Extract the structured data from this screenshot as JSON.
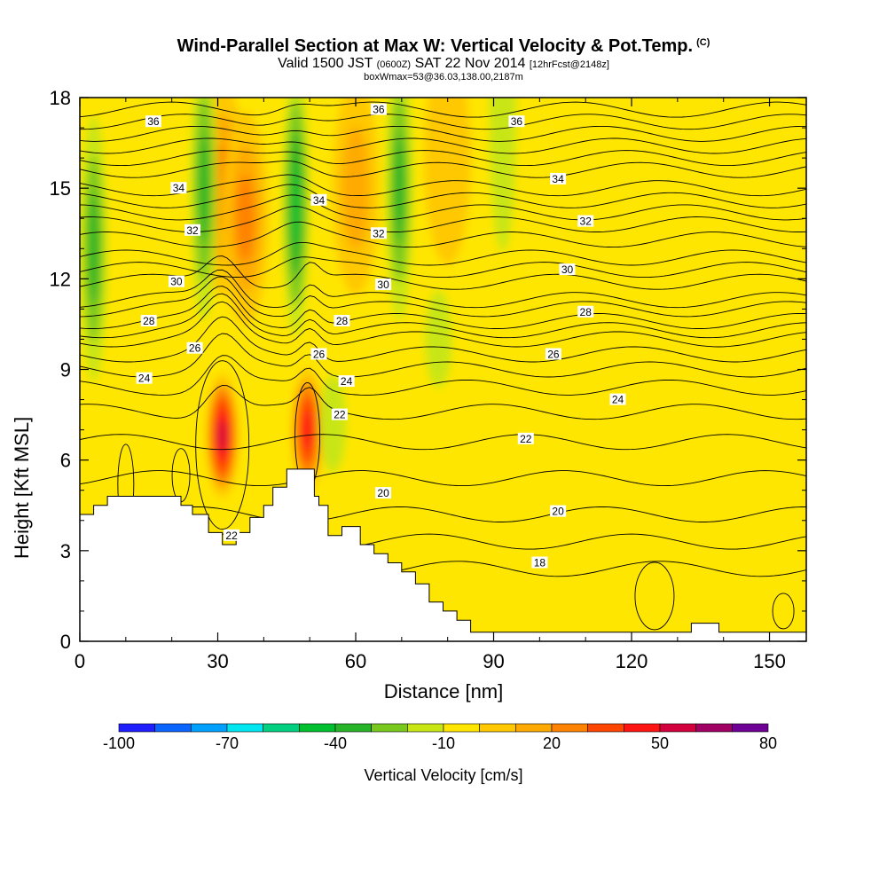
{
  "header": {
    "title": "Wind-Parallel Section at Max W: Vertical Velocity & Pot.Temp.",
    "title_suffix": "(C)",
    "valid_prefix": "Valid 1500 JST",
    "valid_utc": "(0600Z)",
    "valid_date": "SAT 22 Nov 2014",
    "forecast_info": "[12hrFcst@2148z]",
    "box_info": "boxWmax=53@36.03,138.00,2187m"
  },
  "chart_data": {
    "type": "heatmap",
    "xlabel": "Distance [nm]",
    "ylabel": "Height [Kft MSL]",
    "xlim": [
      0,
      158
    ],
    "ylim": [
      0,
      18
    ],
    "x_ticks": [
      0,
      30,
      60,
      90,
      120,
      150
    ],
    "y_ticks": [
      0,
      3,
      6,
      9,
      12,
      15,
      18
    ],
    "colorbar": {
      "label": "Vertical Velocity [cm/s]",
      "min": -100,
      "max": 80,
      "step": 10,
      "tick_labels": [
        "-100",
        "-70",
        "-40",
        "-10",
        "20",
        "50",
        "80"
      ],
      "colors": [
        "#1e1eff",
        "#0a64ff",
        "#00a0ff",
        "#00e6f0",
        "#00d080",
        "#00c030",
        "#28b428",
        "#78c81e",
        "#c8e614",
        "#ffe600",
        "#ffc800",
        "#ffaa00",
        "#ff8200",
        "#ff4600",
        "#ff1414",
        "#d2003c",
        "#a00064",
        "#6e0096"
      ]
    },
    "background_value": -5,
    "velocity_cells": [
      {
        "name": "updraft-30nm",
        "x": 31,
        "z": 6.8,
        "peak_cm_s": 53,
        "colors": [
          "#ffc800",
          "#ff8200",
          "#ff4600",
          "#ff1414",
          "#d2003c"
        ]
      },
      {
        "name": "updraft-49nm",
        "x": 49.5,
        "z": 7.0,
        "peak_cm_s": 42,
        "colors": [
          "#ffc800",
          "#ff8200",
          "#ff4600",
          "#ff1414"
        ]
      },
      {
        "name": "updraft-upper-27nm",
        "x": 31,
        "z": 15,
        "peak_cm_s": 25,
        "colors": [
          "#ffc800",
          "#ffaa00",
          "#ff8200"
        ]
      },
      {
        "name": "updraft-upper-38nm",
        "x": 36,
        "z": 14,
        "peak_cm_s": 25,
        "colors": [
          "#ffc800",
          "#ffaa00",
          "#ff8200"
        ]
      },
      {
        "name": "updraft-upper-60nm",
        "x": 60,
        "z": 15,
        "peak_cm_s": 20,
        "colors": [
          "#ffc800",
          "#ffaa00"
        ]
      },
      {
        "name": "updraft-upper-80nm",
        "x": 80,
        "z": 16,
        "peak_cm_s": 10,
        "colors": [
          "#ffc800"
        ]
      },
      {
        "name": "downdraft-3nm",
        "x": 3,
        "z": 13,
        "peak_cm_s": -40,
        "colors": [
          "#c8e614",
          "#78c81e",
          "#28b428"
        ]
      },
      {
        "name": "downdraft-26nm",
        "x": 27,
        "z": 15,
        "peak_cm_s": -40,
        "colors": [
          "#c8e614",
          "#78c81e",
          "#28b428"
        ]
      },
      {
        "name": "downdraft-47nm",
        "x": 47,
        "z": 14.5,
        "peak_cm_s": -50,
        "colors": [
          "#c8e614",
          "#78c81e",
          "#28b428",
          "#00c030"
        ]
      },
      {
        "name": "downdraft-69nm",
        "x": 69.5,
        "z": 15,
        "peak_cm_s": -40,
        "colors": [
          "#c8e614",
          "#78c81e",
          "#28b428"
        ]
      },
      {
        "name": "downdraft-53nm-low",
        "x": 55,
        "z": 7.2,
        "peak_cm_s": -15,
        "colors": [
          "#c8e614"
        ]
      },
      {
        "name": "downdraft-78nm",
        "x": 78,
        "z": 10,
        "peak_cm_s": -15,
        "colors": [
          "#c8e614"
        ]
      },
      {
        "name": "downdraft-90nm-top",
        "x": 92,
        "z": 17.3,
        "peak_cm_s": -15,
        "colors": [
          "#c8e614"
        ]
      }
    ],
    "terrain_nm_kft": [
      [
        0,
        4.2
      ],
      [
        3,
        4.2
      ],
      [
        3,
        4.5
      ],
      [
        6,
        4.5
      ],
      [
        6,
        4.8
      ],
      [
        22,
        4.8
      ],
      [
        22,
        4.5
      ],
      [
        24.5,
        4.5
      ],
      [
        24.5,
        4.2
      ],
      [
        28,
        4.2
      ],
      [
        28,
        3.6
      ],
      [
        31,
        3.6
      ],
      [
        31,
        3.2
      ],
      [
        34,
        3.2
      ],
      [
        34,
        3.6
      ],
      [
        37,
        3.6
      ],
      [
        37,
        4.1
      ],
      [
        40,
        4.1
      ],
      [
        40,
        4.5
      ],
      [
        42,
        4.5
      ],
      [
        42,
        5.1
      ],
      [
        45,
        5.1
      ],
      [
        45,
        5.7
      ],
      [
        51,
        5.7
      ],
      [
        51,
        4.8
      ],
      [
        52,
        4.8
      ],
      [
        52,
        4.5
      ],
      [
        54,
        4.5
      ],
      [
        54,
        3.5
      ],
      [
        57,
        3.5
      ],
      [
        57,
        3.8
      ],
      [
        61,
        3.8
      ],
      [
        61,
        3.2
      ],
      [
        64,
        3.2
      ],
      [
        64,
        2.9
      ],
      [
        67,
        2.9
      ],
      [
        67,
        2.6
      ],
      [
        70,
        2.6
      ],
      [
        70,
        2.3
      ],
      [
        73,
        2.3
      ],
      [
        73,
        1.9
      ],
      [
        76,
        1.9
      ],
      [
        76,
        1.3
      ],
      [
        79,
        1.3
      ],
      [
        79,
        1.0
      ],
      [
        82,
        1.0
      ],
      [
        82,
        0.7
      ],
      [
        85,
        0.7
      ],
      [
        85,
        0.3
      ],
      [
        133,
        0.3
      ],
      [
        133,
        0.6
      ],
      [
        139,
        0.6
      ],
      [
        139,
        0.3
      ],
      [
        158,
        0.3
      ]
    ],
    "theta_contours": [
      {
        "label": "18",
        "base": 2.4,
        "label_x": 100,
        "label_y": 2.6
      },
      {
        "label": "20",
        "base": 4.2,
        "label_x": 66,
        "label_y": 4.9
      },
      {
        "label": "20",
        "base": 4.2,
        "label_x": 104,
        "label_y": 4.3
      },
      {
        "label": "22",
        "base": 6.6,
        "label_x": 97,
        "label_y": 6.7
      },
      {
        "label": "22",
        "base": 6.6,
        "label_x": 56.5,
        "label_y": 7.5
      },
      {
        "label": "22",
        "base": 6.6,
        "label_x": 33,
        "label_y": 3.5
      },
      {
        "label": "24",
        "base": 8.4,
        "label_x": 14,
        "label_y": 8.7
      },
      {
        "label": "24",
        "base": 8.4,
        "label_x": 117,
        "label_y": 8.0
      },
      {
        "label": "24",
        "base": 8.4,
        "label_x": 58,
        "label_y": 8.6
      },
      {
        "label": "26",
        "base": 9.5,
        "label_x": 25,
        "label_y": 9.7
      },
      {
        "label": "26",
        "base": 9.5,
        "label_x": 103,
        "label_y": 9.5
      },
      {
        "label": "26",
        "base": 9.5,
        "label_x": 52,
        "label_y": 9.5
      },
      {
        "label": "28",
        "base": 10.6,
        "label_x": 15,
        "label_y": 10.6
      },
      {
        "label": "28",
        "base": 10.6,
        "label_x": 110,
        "label_y": 10.9
      },
      {
        "label": "28",
        "base": 10.6,
        "label_x": 57,
        "label_y": 10.6
      },
      {
        "label": "30",
        "base": 11.9,
        "label_x": 21,
        "label_y": 11.9
      },
      {
        "label": "30",
        "base": 11.9,
        "label_x": 106,
        "label_y": 12.3
      },
      {
        "label": "30",
        "base": 11.9,
        "label_x": 66,
        "label_y": 11.8
      },
      {
        "label": "32",
        "base": 13.3,
        "label_x": 24.5,
        "label_y": 13.6
      },
      {
        "label": "32",
        "base": 13.3,
        "label_x": 110,
        "label_y": 13.9
      },
      {
        "label": "32",
        "base": 13.3,
        "label_x": 65,
        "label_y": 13.5
      },
      {
        "label": "34",
        "base": 15.0,
        "label_x": 21.5,
        "label_y": 15.0
      },
      {
        "label": "34",
        "base": 15.0,
        "label_x": 104,
        "label_y": 15.3
      },
      {
        "label": "34",
        "base": 15.0,
        "label_x": 52,
        "label_y": 14.6
      },
      {
        "label": "36",
        "base": 17.2,
        "label_x": 16,
        "label_y": 17.2
      },
      {
        "label": "36",
        "base": 17.2,
        "label_x": 95,
        "label_y": 17.2
      },
      {
        "label": "36",
        "base": 17.2,
        "label_x": 65,
        "label_y": 17.6
      }
    ],
    "extra_contour_levels": [
      11.0,
      11.3,
      12.3,
      12.7,
      13.8,
      14.2,
      14.6,
      15.6,
      16.0,
      16.4,
      16.8,
      17.6,
      10.0,
      10.3,
      9.0,
      7.6,
      5.4,
      3.3
    ]
  }
}
